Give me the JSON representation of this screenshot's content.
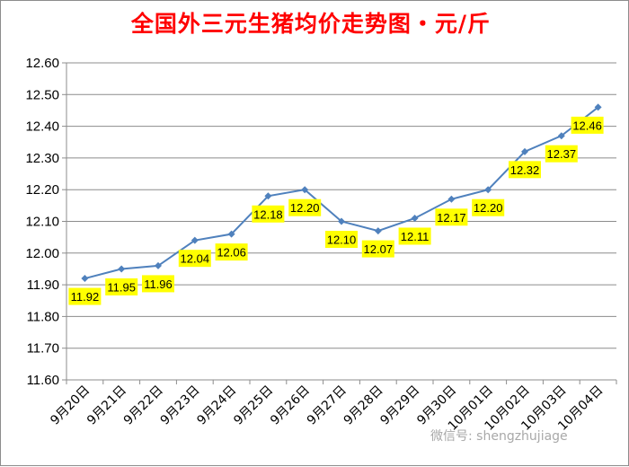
{
  "chart_data": {
    "type": "line",
    "title": "全国外三元生猪均价走势图・元/斤",
    "xlabel": "",
    "ylabel": "",
    "categories": [
      "9月20日",
      "9月21日",
      "9月22日",
      "9月23日",
      "9月24日",
      "9月25日",
      "9月26日",
      "9月27日",
      "9月28日",
      "9月29日",
      "9月30日",
      "10月01日",
      "10月02日",
      "10月03日",
      "10月04日"
    ],
    "series": [
      {
        "values": [
          11.92,
          11.95,
          11.96,
          12.04,
          12.06,
          12.18,
          12.2,
          12.1,
          12.07,
          12.11,
          12.17,
          12.2,
          12.32,
          12.37,
          12.46
        ]
      }
    ],
    "ylim": [
      11.6,
      12.6
    ],
    "yticks": [
      "11.60",
      "11.70",
      "11.80",
      "11.90",
      "12.00",
      "12.10",
      "12.20",
      "12.30",
      "12.40",
      "12.50",
      "12.60"
    ],
    "grid": true,
    "data_labels": true,
    "colors": {
      "line": "#4f81bd",
      "label_bg": "#ffff00",
      "title": "#ff0000"
    }
  },
  "watermark": {
    "text": "微信号: shengzhujiage"
  }
}
